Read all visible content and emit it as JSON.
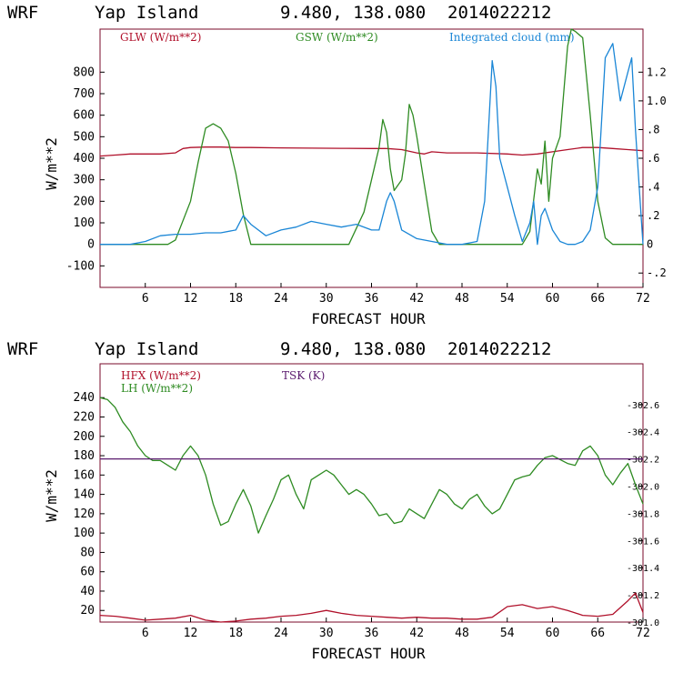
{
  "colors": {
    "red": "#b0102a",
    "green": "#2e8b22",
    "blue": "#1a86d6",
    "purple": "#5a1a6e",
    "frame": "#7a0a2a"
  },
  "chart_data": [
    {
      "type": "line",
      "title": {
        "model": "WRF",
        "location": "Yap Island",
        "coords": "9.480, 138.080",
        "date": "2014022212"
      },
      "xlabel": "FORECAST HOUR",
      "ylabel": "W/m**2",
      "xlim": [
        0,
        72
      ],
      "xticks": [
        6,
        12,
        18,
        24,
        30,
        36,
        42,
        48,
        54,
        60,
        66,
        72
      ],
      "ylim": [
        -200,
        1000
      ],
      "yticks": [
        -100,
        0,
        100,
        200,
        300,
        400,
        500,
        600,
        700,
        800
      ],
      "y2lim": [
        -0.3,
        1.5
      ],
      "y2ticks": [
        "-.2",
        "0",
        ".2",
        ".4",
        ".6",
        ".8",
        "1.0",
        "1.2"
      ],
      "y2values": [
        -0.2,
        0,
        0.2,
        0.4,
        0.6,
        0.8,
        1.0,
        1.2
      ],
      "series": [
        {
          "name": "GLW (W/m**2)",
          "axis": "left",
          "color": "red",
          "x": [
            0,
            2,
            4,
            6,
            8,
            10,
            11,
            12,
            14,
            16,
            18,
            20,
            24,
            28,
            32,
            36,
            38,
            40,
            42,
            43,
            44,
            46,
            48,
            50,
            54,
            56,
            58,
            60,
            62,
            64,
            66,
            68,
            70,
            72
          ],
          "y": [
            410,
            415,
            420,
            420,
            420,
            425,
            445,
            450,
            452,
            452,
            450,
            450,
            448,
            447,
            446,
            445,
            445,
            440,
            425,
            420,
            430,
            425,
            425,
            425,
            420,
            415,
            420,
            430,
            440,
            450,
            450,
            445,
            440,
            435
          ]
        },
        {
          "name": "GSW (W/m**2)",
          "axis": "left",
          "color": "green",
          "x": [
            0,
            5,
            9,
            10,
            12,
            13,
            14,
            15,
            16,
            17,
            18,
            19,
            20,
            24,
            30,
            33,
            35,
            36,
            37,
            37.5,
            38,
            38.5,
            39,
            40,
            40.5,
            41,
            41.5,
            42,
            43,
            44,
            45,
            48,
            54,
            56,
            57,
            58,
            58.5,
            59,
            59.5,
            60,
            61,
            62,
            62.5,
            63,
            64,
            65,
            66,
            67,
            68,
            72
          ],
          "y": [
            0,
            0,
            0,
            20,
            200,
            380,
            540,
            560,
            540,
            480,
            330,
            140,
            0,
            0,
            0,
            0,
            150,
            300,
            450,
            580,
            520,
            350,
            250,
            300,
            420,
            650,
            600,
            500,
            280,
            60,
            0,
            0,
            0,
            0,
            60,
            350,
            280,
            480,
            200,
            400,
            500,
            920,
            1000,
            990,
            960,
            600,
            200,
            30,
            0,
            0
          ]
        },
        {
          "name": "Integrated cloud (mm)",
          "axis": "right",
          "color": "blue",
          "x": [
            0,
            4,
            6,
            8,
            10,
            12,
            14,
            16,
            18,
            19,
            20,
            22,
            24,
            26,
            28,
            30,
            32,
            34,
            36,
            37,
            38,
            38.5,
            39,
            40,
            42,
            44,
            46,
            48,
            50,
            51,
            52,
            52.5,
            53,
            54,
            55,
            56,
            57,
            57.5,
            58,
            58.5,
            59,
            60,
            61,
            62,
            63,
            64,
            65,
            66,
            67,
            68,
            68.5,
            69,
            70,
            70.5,
            71,
            72
          ],
          "y": [
            0.0,
            0.0,
            0.02,
            0.06,
            0.07,
            0.07,
            0.08,
            0.08,
            0.1,
            0.2,
            0.14,
            0.06,
            0.1,
            0.12,
            0.16,
            0.14,
            0.12,
            0.14,
            0.1,
            0.1,
            0.3,
            0.36,
            0.3,
            0.1,
            0.04,
            0.02,
            0.0,
            0.0,
            0.02,
            0.3,
            1.28,
            1.1,
            0.6,
            0.4,
            0.2,
            0.02,
            0.15,
            0.3,
            0.0,
            0.2,
            0.25,
            0.1,
            0.02,
            0.0,
            0.0,
            0.02,
            0.1,
            0.4,
            1.3,
            1.4,
            1.2,
            1.0,
            1.2,
            1.3,
            0.8,
            0.0
          ]
        }
      ]
    },
    {
      "type": "line",
      "title": {
        "model": "WRF",
        "location": "Yap Island",
        "coords": "9.480, 138.080",
        "date": "2014022212"
      },
      "xlabel": "FORECAST HOUR",
      "ylabel": "W/m**2",
      "xlim": [
        0,
        72
      ],
      "xticks": [
        6,
        12,
        18,
        24,
        30,
        36,
        42,
        48,
        54,
        60,
        66,
        72
      ],
      "ylim": [
        8,
        275
      ],
      "yticks": [
        20,
        40,
        60,
        80,
        100,
        120,
        140,
        160,
        180,
        200,
        220,
        240
      ],
      "y2lim": [
        301.0,
        302.9
      ],
      "y2ticks": [
        "301.0",
        "301.2",
        "301.4",
        "301.6",
        "301.8",
        "302.0",
        "302.2",
        "302.4",
        "302.6"
      ],
      "y2values": [
        301.0,
        301.2,
        301.4,
        301.6,
        301.8,
        302.0,
        302.2,
        302.4,
        302.6
      ],
      "series": [
        {
          "name": "HFX (W/m**2)",
          "axis": "left",
          "color": "red",
          "x": [
            0,
            2,
            4,
            6,
            8,
            10,
            12,
            14,
            16,
            18,
            20,
            22,
            24,
            26,
            28,
            30,
            32,
            34,
            36,
            38,
            40,
            42,
            44,
            46,
            48,
            50,
            52,
            54,
            56,
            58,
            60,
            62,
            64,
            66,
            68,
            70,
            71,
            72
          ],
          "y": [
            15,
            14,
            12,
            10,
            11,
            12,
            15,
            10,
            8,
            9,
            11,
            12,
            14,
            15,
            17,
            20,
            17,
            15,
            14,
            13,
            12,
            13,
            12,
            12,
            11,
            11,
            13,
            24,
            26,
            22,
            24,
            20,
            15,
            14,
            16,
            30,
            38,
            18
          ]
        },
        {
          "name": "LH (W/m**2)",
          "axis": "left",
          "color": "green",
          "x": [
            0,
            1,
            2,
            3,
            4,
            5,
            6,
            7,
            8,
            9,
            10,
            11,
            12,
            13,
            14,
            15,
            16,
            17,
            18,
            19,
            20,
            21,
            22,
            23,
            24,
            25,
            26,
            27,
            28,
            29,
            30,
            31,
            32,
            33,
            34,
            35,
            36,
            37,
            38,
            39,
            40,
            41,
            42,
            43,
            44,
            45,
            46,
            47,
            48,
            49,
            50,
            51,
            52,
            53,
            54,
            55,
            56,
            57,
            58,
            59,
            60,
            61,
            62,
            63,
            64,
            65,
            66,
            67,
            68,
            69,
            70,
            71,
            72
          ],
          "y": [
            240,
            238,
            230,
            215,
            205,
            190,
            180,
            175,
            175,
            170,
            165,
            180,
            190,
            180,
            160,
            130,
            108,
            112,
            130,
            145,
            128,
            100,
            118,
            135,
            155,
            160,
            140,
            125,
            155,
            160,
            165,
            160,
            150,
            140,
            145,
            140,
            130,
            118,
            120,
            110,
            112,
            125,
            120,
            115,
            130,
            145,
            140,
            130,
            125,
            135,
            140,
            128,
            120,
            125,
            140,
            155,
            158,
            160,
            170,
            178,
            180,
            176,
            172,
            170,
            185,
            190,
            180,
            160,
            150,
            162,
            172,
            150,
            130
          ]
        },
        {
          "name": "TSK (K)",
          "axis": "right",
          "color": "purple",
          "x": [
            0,
            72
          ],
          "y": [
            302.2,
            302.2
          ]
        }
      ]
    }
  ]
}
